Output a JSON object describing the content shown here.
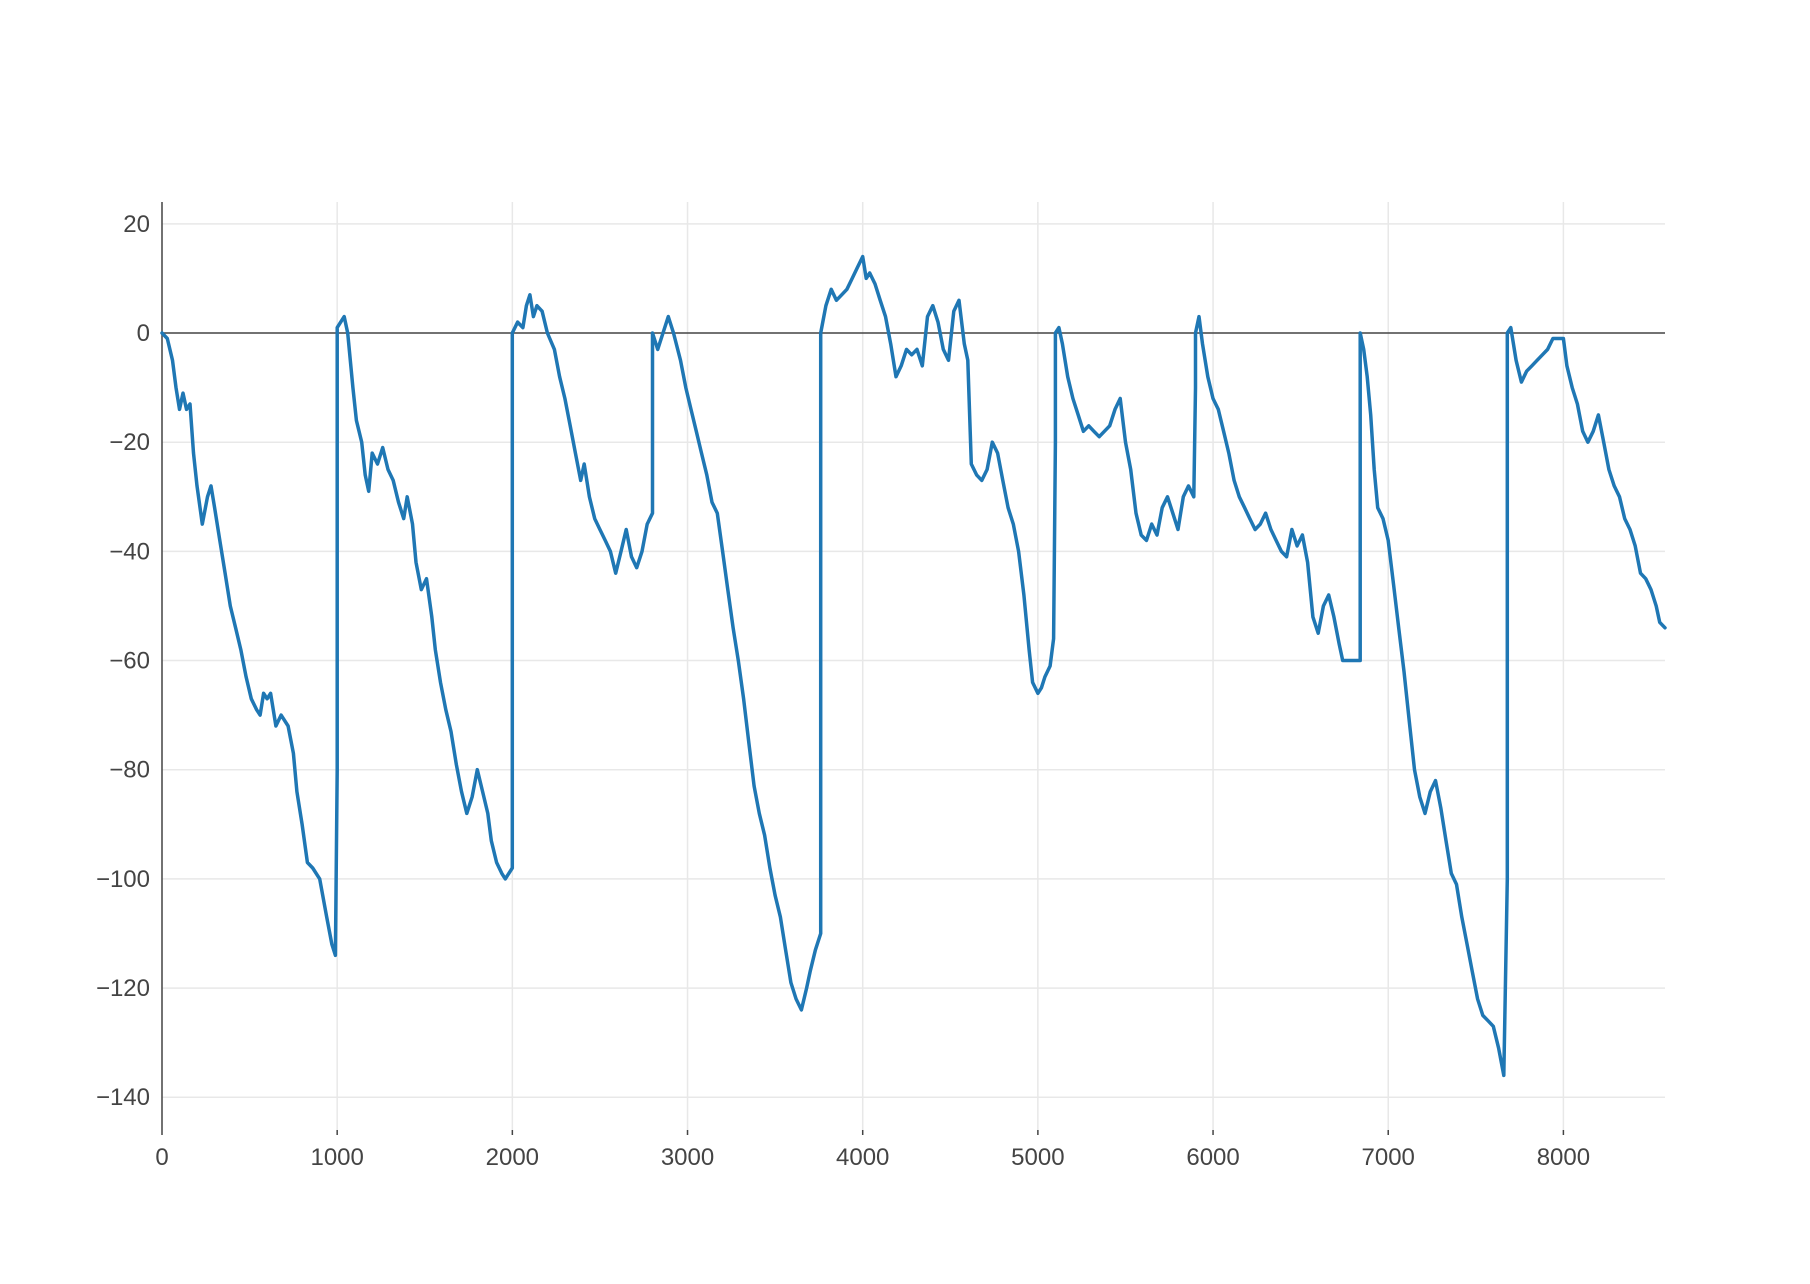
{
  "chart_data": {
    "type": "line",
    "title": "",
    "xlabel": "",
    "ylabel": "",
    "xlim": [
      0,
      8580
    ],
    "ylim": [
      -146,
      24
    ],
    "grid": true,
    "zero_line": true,
    "x_ticks": [
      {
        "value": 0,
        "label": "0"
      },
      {
        "value": 1000,
        "label": "1000"
      },
      {
        "value": 2000,
        "label": "2000"
      },
      {
        "value": 3000,
        "label": "3000"
      },
      {
        "value": 4000,
        "label": "4000"
      },
      {
        "value": 5000,
        "label": "5000"
      },
      {
        "value": 6000,
        "label": "6000"
      },
      {
        "value": 7000,
        "label": "7000"
      },
      {
        "value": 8000,
        "label": "8000"
      }
    ],
    "y_ticks": [
      {
        "value": 20,
        "label": "20"
      },
      {
        "value": 0,
        "label": "0"
      },
      {
        "value": -20,
        "label": "−20"
      },
      {
        "value": -40,
        "label": "−40"
      },
      {
        "value": -60,
        "label": "−60"
      },
      {
        "value": -80,
        "label": "−80"
      },
      {
        "value": -100,
        "label": "−100"
      },
      {
        "value": -120,
        "label": "−120"
      },
      {
        "value": -140,
        "label": "−140"
      }
    ],
    "series": [
      {
        "color": "#1f77b4",
        "points": [
          [
            0,
            0
          ],
          [
            30,
            -1
          ],
          [
            60,
            -5
          ],
          [
            80,
            -10
          ],
          [
            100,
            -14
          ],
          [
            120,
            -11
          ],
          [
            140,
            -14
          ],
          [
            160,
            -13
          ],
          [
            180,
            -22
          ],
          [
            200,
            -28
          ],
          [
            230,
            -35
          ],
          [
            260,
            -30
          ],
          [
            280,
            -28
          ],
          [
            300,
            -32
          ],
          [
            330,
            -38
          ],
          [
            360,
            -44
          ],
          [
            390,
            -50
          ],
          [
            420,
            -54
          ],
          [
            450,
            -58
          ],
          [
            480,
            -63
          ],
          [
            510,
            -67
          ],
          [
            540,
            -69
          ],
          [
            560,
            -70
          ],
          [
            580,
            -66
          ],
          [
            600,
            -67
          ],
          [
            620,
            -66
          ],
          [
            650,
            -72
          ],
          [
            680,
            -70
          ],
          [
            720,
            -72
          ],
          [
            750,
            -77
          ],
          [
            770,
            -84
          ],
          [
            800,
            -90
          ],
          [
            830,
            -97
          ],
          [
            860,
            -98
          ],
          [
            900,
            -100
          ],
          [
            940,
            -107
          ],
          [
            970,
            -112
          ],
          [
            990,
            -114
          ],
          [
            1000,
            -80
          ],
          [
            1000,
            1
          ],
          [
            1020,
            2
          ],
          [
            1040,
            3
          ],
          [
            1060,
            0
          ],
          [
            1090,
            -10
          ],
          [
            1110,
            -16
          ],
          [
            1140,
            -20
          ],
          [
            1160,
            -26
          ],
          [
            1180,
            -29
          ],
          [
            1200,
            -22
          ],
          [
            1230,
            -24
          ],
          [
            1260,
            -21
          ],
          [
            1290,
            -25
          ],
          [
            1320,
            -27
          ],
          [
            1350,
            -31
          ],
          [
            1380,
            -34
          ],
          [
            1400,
            -30
          ],
          [
            1430,
            -35
          ],
          [
            1450,
            -42
          ],
          [
            1480,
            -47
          ],
          [
            1510,
            -45
          ],
          [
            1540,
            -52
          ],
          [
            1560,
            -58
          ],
          [
            1590,
            -64
          ],
          [
            1620,
            -69
          ],
          [
            1650,
            -73
          ],
          [
            1680,
            -79
          ],
          [
            1710,
            -84
          ],
          [
            1740,
            -88
          ],
          [
            1770,
            -85
          ],
          [
            1800,
            -80
          ],
          [
            1830,
            -84
          ],
          [
            1860,
            -88
          ],
          [
            1880,
            -93
          ],
          [
            1910,
            -97
          ],
          [
            1940,
            -99
          ],
          [
            1960,
            -100
          ],
          [
            2000,
            -98
          ],
          [
            2000,
            -58
          ],
          [
            2000,
            0
          ],
          [
            2030,
            2
          ],
          [
            2060,
            1
          ],
          [
            2080,
            5
          ],
          [
            2100,
            7
          ],
          [
            2120,
            3
          ],
          [
            2140,
            5
          ],
          [
            2170,
            4
          ],
          [
            2200,
            0
          ],
          [
            2240,
            -3
          ],
          [
            2270,
            -8
          ],
          [
            2300,
            -12
          ],
          [
            2330,
            -17
          ],
          [
            2360,
            -22
          ],
          [
            2390,
            -27
          ],
          [
            2410,
            -24
          ],
          [
            2440,
            -30
          ],
          [
            2470,
            -34
          ],
          [
            2500,
            -36
          ],
          [
            2530,
            -38
          ],
          [
            2560,
            -40
          ],
          [
            2590,
            -44
          ],
          [
            2620,
            -40
          ],
          [
            2650,
            -36
          ],
          [
            2680,
            -41
          ],
          [
            2710,
            -43
          ],
          [
            2740,
            -40
          ],
          [
            2770,
            -35
          ],
          [
            2800,
            -33
          ],
          [
            2800,
            -20
          ],
          [
            2800,
            0
          ],
          [
            2830,
            -3
          ],
          [
            2860,
            0
          ],
          [
            2890,
            3
          ],
          [
            2920,
            0
          ],
          [
            2960,
            -5
          ],
          [
            2990,
            -10
          ],
          [
            3020,
            -14
          ],
          [
            3050,
            -18
          ],
          [
            3080,
            -22
          ],
          [
            3110,
            -26
          ],
          [
            3140,
            -31
          ],
          [
            3170,
            -33
          ],
          [
            3200,
            -40
          ],
          [
            3230,
            -47
          ],
          [
            3260,
            -54
          ],
          [
            3290,
            -60
          ],
          [
            3320,
            -67
          ],
          [
            3350,
            -75
          ],
          [
            3380,
            -83
          ],
          [
            3410,
            -88
          ],
          [
            3440,
            -92
          ],
          [
            3470,
            -98
          ],
          [
            3500,
            -103
          ],
          [
            3530,
            -107
          ],
          [
            3560,
            -113
          ],
          [
            3590,
            -119
          ],
          [
            3620,
            -122
          ],
          [
            3650,
            -124
          ],
          [
            3680,
            -120
          ],
          [
            3700,
            -117
          ],
          [
            3730,
            -113
          ],
          [
            3760,
            -110
          ],
          [
            3760,
            -40
          ],
          [
            3760,
            0
          ],
          [
            3790,
            5
          ],
          [
            3820,
            8
          ],
          [
            3850,
            6
          ],
          [
            3880,
            7
          ],
          [
            3910,
            8
          ],
          [
            3940,
            10
          ],
          [
            3970,
            12
          ],
          [
            4000,
            14
          ],
          [
            4020,
            10
          ],
          [
            4040,
            11
          ],
          [
            4070,
            9
          ],
          [
            4100,
            6
          ],
          [
            4130,
            3
          ],
          [
            4160,
            -2
          ],
          [
            4190,
            -8
          ],
          [
            4220,
            -6
          ],
          [
            4250,
            -3
          ],
          [
            4280,
            -4
          ],
          [
            4310,
            -3
          ],
          [
            4340,
            -6
          ],
          [
            4370,
            3
          ],
          [
            4400,
            5
          ],
          [
            4430,
            2
          ],
          [
            4460,
            -3
          ],
          [
            4490,
            -5
          ],
          [
            4520,
            4
          ],
          [
            4550,
            6
          ],
          [
            4580,
            -2
          ],
          [
            4600,
            -5
          ],
          [
            4620,
            -24
          ],
          [
            4650,
            -26
          ],
          [
            4680,
            -27
          ],
          [
            4710,
            -25
          ],
          [
            4740,
            -20
          ],
          [
            4770,
            -22
          ],
          [
            4800,
            -27
          ],
          [
            4830,
            -32
          ],
          [
            4860,
            -35
          ],
          [
            4890,
            -40
          ],
          [
            4920,
            -48
          ],
          [
            4950,
            -58
          ],
          [
            4970,
            -64
          ],
          [
            5000,
            -66
          ],
          [
            5020,
            -65
          ],
          [
            5040,
            -63
          ],
          [
            5070,
            -61
          ],
          [
            5090,
            -56
          ],
          [
            5100,
            -20
          ],
          [
            5100,
            0
          ],
          [
            5120,
            1
          ],
          [
            5140,
            -2
          ],
          [
            5170,
            -8
          ],
          [
            5200,
            -12
          ],
          [
            5230,
            -15
          ],
          [
            5260,
            -18
          ],
          [
            5290,
            -17
          ],
          [
            5320,
            -18
          ],
          [
            5350,
            -19
          ],
          [
            5380,
            -18
          ],
          [
            5410,
            -17
          ],
          [
            5440,
            -14
          ],
          [
            5470,
            -12
          ],
          [
            5500,
            -20
          ],
          [
            5530,
            -25
          ],
          [
            5560,
            -33
          ],
          [
            5590,
            -37
          ],
          [
            5620,
            -38
          ],
          [
            5650,
            -35
          ],
          [
            5680,
            -37
          ],
          [
            5710,
            -32
          ],
          [
            5740,
            -30
          ],
          [
            5770,
            -33
          ],
          [
            5800,
            -36
          ],
          [
            5830,
            -30
          ],
          [
            5860,
            -28
          ],
          [
            5890,
            -30
          ],
          [
            5900,
            -10
          ],
          [
            5900,
            0
          ],
          [
            5920,
            3
          ],
          [
            5940,
            -2
          ],
          [
            5970,
            -8
          ],
          [
            6000,
            -12
          ],
          [
            6030,
            -14
          ],
          [
            6060,
            -18
          ],
          [
            6090,
            -22
          ],
          [
            6120,
            -27
          ],
          [
            6150,
            -30
          ],
          [
            6180,
            -32
          ],
          [
            6210,
            -34
          ],
          [
            6240,
            -36
          ],
          [
            6270,
            -35
          ],
          [
            6300,
            -33
          ],
          [
            6330,
            -36
          ],
          [
            6360,
            -38
          ],
          [
            6390,
            -40
          ],
          [
            6420,
            -41
          ],
          [
            6450,
            -36
          ],
          [
            6480,
            -39
          ],
          [
            6510,
            -37
          ],
          [
            6540,
            -42
          ],
          [
            6570,
            -52
          ],
          [
            6600,
            -55
          ],
          [
            6630,
            -50
          ],
          [
            6660,
            -48
          ],
          [
            6690,
            -52
          ],
          [
            6720,
            -57
          ],
          [
            6740,
            -60
          ],
          [
            6840,
            -60
          ],
          [
            6840,
            -20
          ],
          [
            6840,
            0
          ],
          [
            6860,
            -3
          ],
          [
            6880,
            -8
          ],
          [
            6900,
            -15
          ],
          [
            6920,
            -25
          ],
          [
            6940,
            -32
          ],
          [
            6970,
            -34
          ],
          [
            7000,
            -38
          ],
          [
            7030,
            -46
          ],
          [
            7060,
            -54
          ],
          [
            7090,
            -62
          ],
          [
            7120,
            -71
          ],
          [
            7150,
            -80
          ],
          [
            7180,
            -85
          ],
          [
            7210,
            -88
          ],
          [
            7240,
            -84
          ],
          [
            7270,
            -82
          ],
          [
            7300,
            -87
          ],
          [
            7330,
            -93
          ],
          [
            7360,
            -99
          ],
          [
            7390,
            -101
          ],
          [
            7420,
            -107
          ],
          [
            7450,
            -112
          ],
          [
            7480,
            -117
          ],
          [
            7510,
            -122
          ],
          [
            7540,
            -125
          ],
          [
            7570,
            -126
          ],
          [
            7600,
            -127
          ],
          [
            7630,
            -131
          ],
          [
            7660,
            -136
          ],
          [
            7680,
            -100
          ],
          [
            7680,
            0
          ],
          [
            7700,
            1
          ],
          [
            7730,
            -5
          ],
          [
            7760,
            -9
          ],
          [
            7790,
            -7
          ],
          [
            7820,
            -6
          ],
          [
            7850,
            -5
          ],
          [
            7880,
            -4
          ],
          [
            7910,
            -3
          ],
          [
            7940,
            -1
          ],
          [
            7970,
            -1
          ],
          [
            8000,
            -1
          ],
          [
            8020,
            -6
          ],
          [
            8050,
            -10
          ],
          [
            8080,
            -13
          ],
          [
            8110,
            -18
          ],
          [
            8140,
            -20
          ],
          [
            8170,
            -18
          ],
          [
            8200,
            -15
          ],
          [
            8230,
            -20
          ],
          [
            8260,
            -25
          ],
          [
            8290,
            -28
          ],
          [
            8320,
            -30
          ],
          [
            8350,
            -34
          ],
          [
            8380,
            -36
          ],
          [
            8410,
            -39
          ],
          [
            8440,
            -44
          ],
          [
            8470,
            -45
          ],
          [
            8500,
            -47
          ],
          [
            8530,
            -50
          ],
          [
            8550,
            -53
          ],
          [
            8580,
            -54
          ]
        ]
      }
    ]
  }
}
